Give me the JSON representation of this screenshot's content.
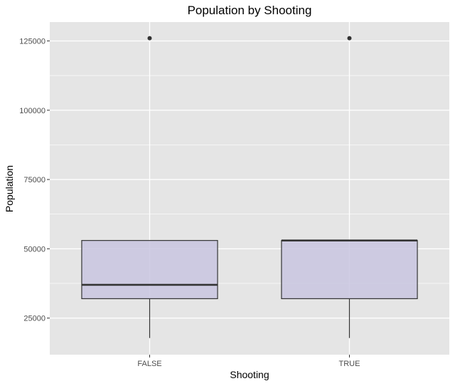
{
  "chart_data": {
    "type": "boxplot",
    "title": "Population by Shooting",
    "xlabel": "Shooting",
    "ylabel": "Population",
    "categories": [
      "FALSE",
      "TRUE"
    ],
    "yticks": [
      25000,
      50000,
      75000,
      100000,
      125000
    ],
    "ytick_labels": [
      "25000",
      "50000",
      "75000",
      "100000",
      "125000"
    ],
    "ylim": [
      11800,
      131800
    ],
    "grid": true,
    "boxes": [
      {
        "category": "FALSE",
        "whisker_low": 17800,
        "q1": 32000,
        "median": 37000,
        "q3": 53000,
        "whisker_high": 53000,
        "outliers": [
          126000
        ]
      },
      {
        "category": "TRUE",
        "whisker_low": 17800,
        "q1": 32000,
        "median": 53000,
        "q3": 53000,
        "whisker_high": 53000,
        "outliers": [
          126000
        ]
      }
    ],
    "colors": {
      "panel": "#e5e5e5",
      "grid": "#ffffff",
      "box_fill": "#c9c5e0",
      "box_stroke": "#333333"
    }
  }
}
